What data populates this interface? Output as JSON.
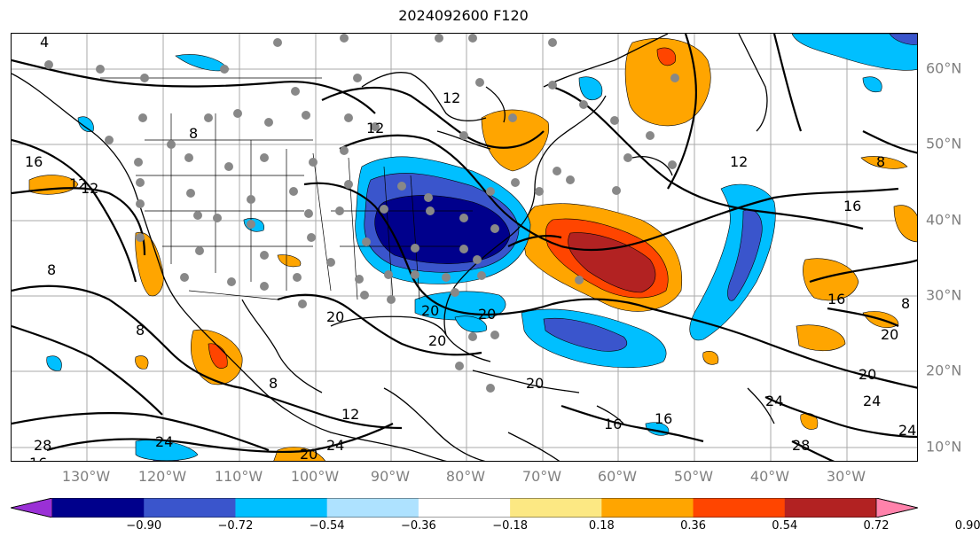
{
  "title": "2024092600 F120",
  "lon_labels": [
    "130°W",
    "120°W",
    "110°W",
    "100°W",
    "90°W",
    "80°W",
    "70°W",
    "60°W",
    "50°W",
    "40°W",
    "30°W"
  ],
  "lat_labels": [
    "60°N",
    "50°N",
    "40°N",
    "30°N",
    "20°N",
    "10°N"
  ],
  "contour_labels": [
    "4",
    "8",
    "12",
    "16",
    "8",
    "12",
    "16",
    "20",
    "24",
    "12",
    "20",
    "20",
    "20",
    "20",
    "8",
    "8",
    "12",
    "16",
    "20",
    "24",
    "28",
    "28",
    "24",
    "24",
    "20",
    "16",
    "16",
    "12",
    "8",
    "8",
    "12",
    "16",
    "20",
    "24"
  ],
  "colorbar": {
    "ticks": [
      "−0.90",
      "−0.72",
      "−0.54",
      "−0.36",
      "−0.18",
      "0.18",
      "0.36",
      "0.54",
      "0.72",
      "0.90"
    ],
    "colors": [
      "#9a30d6",
      "#00008c",
      "#3a55cc",
      "#00bfff",
      "#aee2ff",
      "#ffffff",
      "#fce883",
      "#ffa500",
      "#ff4500",
      "#b22222",
      "#ff82ab"
    ]
  },
  "palette": {
    "strong_negative": "#00008c",
    "negative": "#3a55cc",
    "light_negative": "#00bfff",
    "positive": "#ffa500",
    "strong_positive": "#ff4500",
    "very_strong_positive": "#b22222",
    "station_dot": "#888888",
    "label_gray": "#808080"
  }
}
